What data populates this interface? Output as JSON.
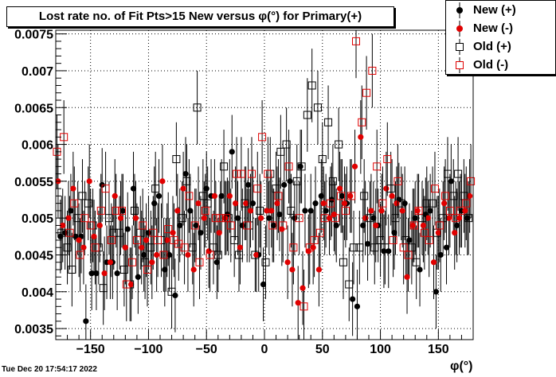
{
  "title": "Lost rate no. of Fit Pts>15 New versus φ(°) for Primary(+)",
  "timestamp": "Tue Dec 20 17:54:17 2022",
  "colors": {
    "black": "#000000",
    "red": "#e00000"
  },
  "legend": [
    {
      "label": "New (+)",
      "marker": "filled-circle",
      "color": "#000000"
    },
    {
      "label": "New (-)",
      "marker": "filled-circle",
      "color": "#e00000"
    },
    {
      "label": "Old (+)",
      "marker": "open-square",
      "color": "#000000"
    },
    {
      "label": "Old (-)",
      "marker": "open-square",
      "color": "#e00000"
    }
  ],
  "chart_data": {
    "type": "scatter",
    "title": "Lost rate no. of Fit Pts>15 New versus φ(°) for Primary(+)",
    "xlabel": "φ(°)",
    "ylabel": "",
    "xlim": [
      -180,
      180
    ],
    "ylim": [
      0.00335,
      0.00755
    ],
    "xticks": [
      -150,
      -100,
      -50,
      0,
      50,
      100,
      150
    ],
    "xtick_labels": [
      "−150",
      "−100",
      "−50",
      "0",
      "50",
      "100",
      "150"
    ],
    "yticks": [
      0.0035,
      0.004,
      0.0045,
      0.005,
      0.0055,
      0.006,
      0.0065,
      0.007,
      0.0075
    ],
    "ytick_labels": [
      "0.0035",
      "0.004",
      "0.0045",
      "0.005",
      "0.0055",
      "0.006",
      "0.0065",
      "0.007",
      "0.0075"
    ],
    "grid": true,
    "legend_position": "top-right",
    "error_half_width": 0.0005,
    "series": [
      {
        "name": "New (+)",
        "marker": "filled-circle",
        "color": "#000000",
        "x": [
          -176,
          -172,
          -167,
          -163,
          -158,
          -154,
          -149,
          -145,
          -140,
          -136,
          -131,
          -127,
          -122,
          -118,
          -113,
          -109,
          -104,
          -100,
          -95,
          -91,
          -86,
          -82,
          -77,
          -73,
          -68,
          -64,
          -59,
          -55,
          -50,
          -46,
          -41,
          -37,
          -32,
          -28,
          -23,
          -19,
          -14,
          -10,
          -5,
          -1,
          4,
          8,
          13,
          17,
          22,
          26,
          31,
          35,
          40,
          44,
          49,
          53,
          58,
          62,
          67,
          71,
          76,
          80,
          85,
          89,
          94,
          98,
          103,
          107,
          112,
          116,
          121,
          125,
          130,
          134,
          139,
          143,
          148,
          152,
          157,
          161,
          166,
          170,
          175
        ],
        "y": [
          0.00475,
          0.0048,
          0.0051,
          0.00475,
          0.00475,
          0.0036,
          0.00425,
          0.00425,
          0.00545,
          0.0044,
          0.0044,
          0.00425,
          0.0051,
          0.00485,
          0.0054,
          0.0042,
          0.0045,
          0.0048,
          0.0052,
          0.0053,
          0.0043,
          0.0045,
          0.00395,
          0.0049,
          0.0056,
          0.0051,
          0.0049,
          0.0048,
          0.0054,
          0.0053,
          0.0044,
          0.0053,
          0.00505,
          0.0059,
          0.005,
          0.0049,
          0.00545,
          0.0052,
          0.0045,
          0.0041,
          0.005,
          0.0049,
          0.00505,
          0.00545,
          0.0055,
          0.005,
          0.0057,
          0.0051,
          0.0051,
          0.0052,
          0.0053,
          0.0051,
          0.00525,
          0.0049,
          0.0053,
          0.0052,
          0.0039,
          0.0038,
          0.0049,
          0.00465,
          0.005,
          0.0049,
          0.00455,
          0.00455,
          0.0048,
          0.00525,
          0.0052,
          0.0047,
          0.005,
          0.0043,
          0.00505,
          0.0051,
          0.004,
          0.0045,
          0.0046,
          0.0055,
          0.0049,
          0.0051,
          0.005
        ]
      },
      {
        "name": "New (-)",
        "marker": "filled-circle",
        "color": "#e00000",
        "x": [
          -178,
          -174,
          -169,
          -165,
          -160,
          -156,
          -151,
          -147,
          -142,
          -138,
          -133,
          -129,
          -124,
          -120,
          -115,
          -111,
          -106,
          -102,
          -97,
          -93,
          -88,
          -84,
          -79,
          -75,
          -70,
          -66,
          -61,
          -57,
          -52,
          -48,
          -43,
          -39,
          -34,
          -30,
          -25,
          -21,
          -16,
          -12,
          -7,
          -3,
          2,
          6,
          11,
          15,
          20,
          24,
          29,
          33,
          38,
          42,
          47,
          51,
          56,
          60,
          65,
          69,
          74,
          78,
          83,
          87,
          92,
          96,
          101,
          105,
          110,
          114,
          119,
          123,
          128,
          132,
          137,
          141,
          146,
          150,
          155,
          159,
          164,
          168,
          173,
          177
        ],
        "y": [
          0.0055,
          0.0049,
          0.005,
          0.0054,
          0.0047,
          0.0046,
          0.0055,
          0.00475,
          0.0049,
          0.00425,
          0.0044,
          0.0053,
          0.005,
          0.0046,
          0.0041,
          0.005,
          0.0046,
          0.0047,
          0.0044,
          0.0045,
          0.0055,
          0.0047,
          0.0048,
          0.0051,
          0.0054,
          0.0045,
          0.0043,
          0.0052,
          0.005,
          0.00455,
          0.0053,
          0.0048,
          0.005,
          0.0053,
          0.0052,
          0.0046,
          0.0052,
          0.0051,
          0.0045,
          0.005,
          0.0051,
          0.0051,
          0.0052,
          0.00485,
          0.0044,
          0.0043,
          0.00385,
          0.00405,
          0.00455,
          0.0046,
          0.0043,
          0.0052,
          0.005,
          0.00505,
          0.0054,
          0.0052,
          0.0053,
          0.0057,
          0.0061,
          0.005,
          0.0051,
          0.0049,
          0.0051,
          0.0054,
          0.0053,
          0.0052,
          0.0051,
          0.0042,
          0.0049,
          0.0051,
          0.0049,
          0.005,
          0.0044,
          0.0048,
          0.0052,
          0.005,
          0.0048,
          0.005,
          0.0051,
          0.0053
        ]
      },
      {
        "name": "Old (+)",
        "marker": "open-square",
        "color": "#000000",
        "x": [
          -175,
          -170,
          -166,
          -161,
          -157,
          -152,
          -148,
          -143,
          -139,
          -134,
          -130,
          -125,
          -121,
          -116,
          -112,
          -107,
          -103,
          -98,
          -94,
          -89,
          -85,
          -80,
          -76,
          -71,
          -67,
          -62,
          -58,
          -53,
          -49,
          -44,
          -40,
          -35,
          -31,
          -26,
          -22,
          -17,
          -13,
          -8,
          -4,
          1,
          5,
          10,
          14,
          19,
          23,
          28,
          32,
          37,
          41,
          46,
          50,
          55,
          59,
          64,
          68,
          73,
          77,
          82,
          86,
          91,
          95,
          100,
          104,
          109,
          113,
          118,
          122,
          127,
          131,
          136,
          140,
          145,
          149,
          154,
          158,
          163,
          167,
          172,
          176
        ],
        "y": [
          0.0048,
          0.0046,
          0.0043,
          0.005,
          0.0053,
          0.0052,
          0.0049,
          0.0046,
          0.00405,
          0.005,
          0.0048,
          0.0048,
          0.0043,
          0.0041,
          0.0051,
          0.0048,
          0.0044,
          0.0046,
          0.0054,
          0.0047,
          0.0045,
          0.004,
          0.0058,
          0.005,
          0.0055,
          0.0046,
          0.0065,
          0.0053,
          0.0052,
          0.0046,
          0.0045,
          0.0057,
          0.005,
          0.0047,
          0.0045,
          0.0052,
          0.0049,
          0.0045,
          0.0051,
          0.0044,
          0.0056,
          0.0054,
          0.0059,
          0.006,
          0.0051,
          0.0055,
          0.0057,
          0.0064,
          0.0068,
          0.0065,
          0.0058,
          0.0063,
          0.0055,
          0.006,
          0.0044,
          0.0041,
          0.0046,
          0.0046,
          0.0053,
          0.005,
          0.0046,
          0.0047,
          0.0046,
          0.0054,
          0.005,
          0.0052,
          0.0047,
          0.0046,
          0.0044,
          0.005,
          0.0052,
          0.0052,
          0.0048,
          0.005,
          0.0056,
          0.0053,
          0.0056,
          0.0053,
          0.005
        ]
      },
      {
        "name": "Old (-)",
        "marker": "open-square",
        "color": "#e00000",
        "x": [
          -179,
          -173,
          -168,
          -164,
          -159,
          -155,
          -150,
          -146,
          -141,
          -137,
          -132,
          -128,
          -123,
          -119,
          -114,
          -110,
          -105,
          -101,
          -96,
          -92,
          -87,
          -83,
          -78,
          -74,
          -69,
          -65,
          -60,
          -56,
          -51,
          -47,
          -42,
          -38,
          -33,
          -29,
          -24,
          -20,
          -15,
          -11,
          -6,
          -2,
          3,
          7,
          12,
          16,
          21,
          25,
          30,
          34,
          39,
          43,
          48,
          52,
          57,
          61,
          66,
          70,
          75,
          79,
          84,
          88,
          93,
          97,
          102,
          106,
          111,
          115,
          120,
          124,
          129,
          133,
          138,
          142,
          147,
          151,
          156,
          160,
          165,
          169,
          174,
          178
        ],
        "y": [
          0.0059,
          0.0061,
          0.0048,
          0.0052,
          0.0045,
          0.005,
          0.0049,
          0.0046,
          0.0051,
          0.0054,
          0.0047,
          0.0051,
          0.0051,
          0.0041,
          0.0044,
          0.0047,
          0.0049,
          0.0043,
          0.0048,
          0.0047,
          0.0045,
          0.00485,
          0.0047,
          0.00465,
          0.0046,
          0.0053,
          0.0049,
          0.0044,
          0.0051,
          0.0045,
          0.005,
          0.005,
          0.005,
          0.0049,
          0.0056,
          0.0056,
          0.0049,
          0.0056,
          0.0054,
          0.0061,
          0.0056,
          0.0049,
          0.0053,
          0.0049,
          0.0057,
          0.0046,
          0.005,
          0.0038,
          0.0046,
          0.0047,
          0.0048,
          0.005,
          0.0052,
          0.005,
          0.0053,
          0.0051,
          0.0053,
          0.0074,
          0.0063,
          0.0067,
          0.007,
          0.0057,
          0.0052,
          0.0058,
          0.0047,
          0.0055,
          0.0046,
          0.0045,
          0.0049,
          0.0051,
          0.0048,
          0.0047,
          0.0054,
          0.0049,
          0.0053,
          0.0051,
          0.005,
          0.0051,
          0.0052,
          0.0055
        ]
      }
    ]
  }
}
